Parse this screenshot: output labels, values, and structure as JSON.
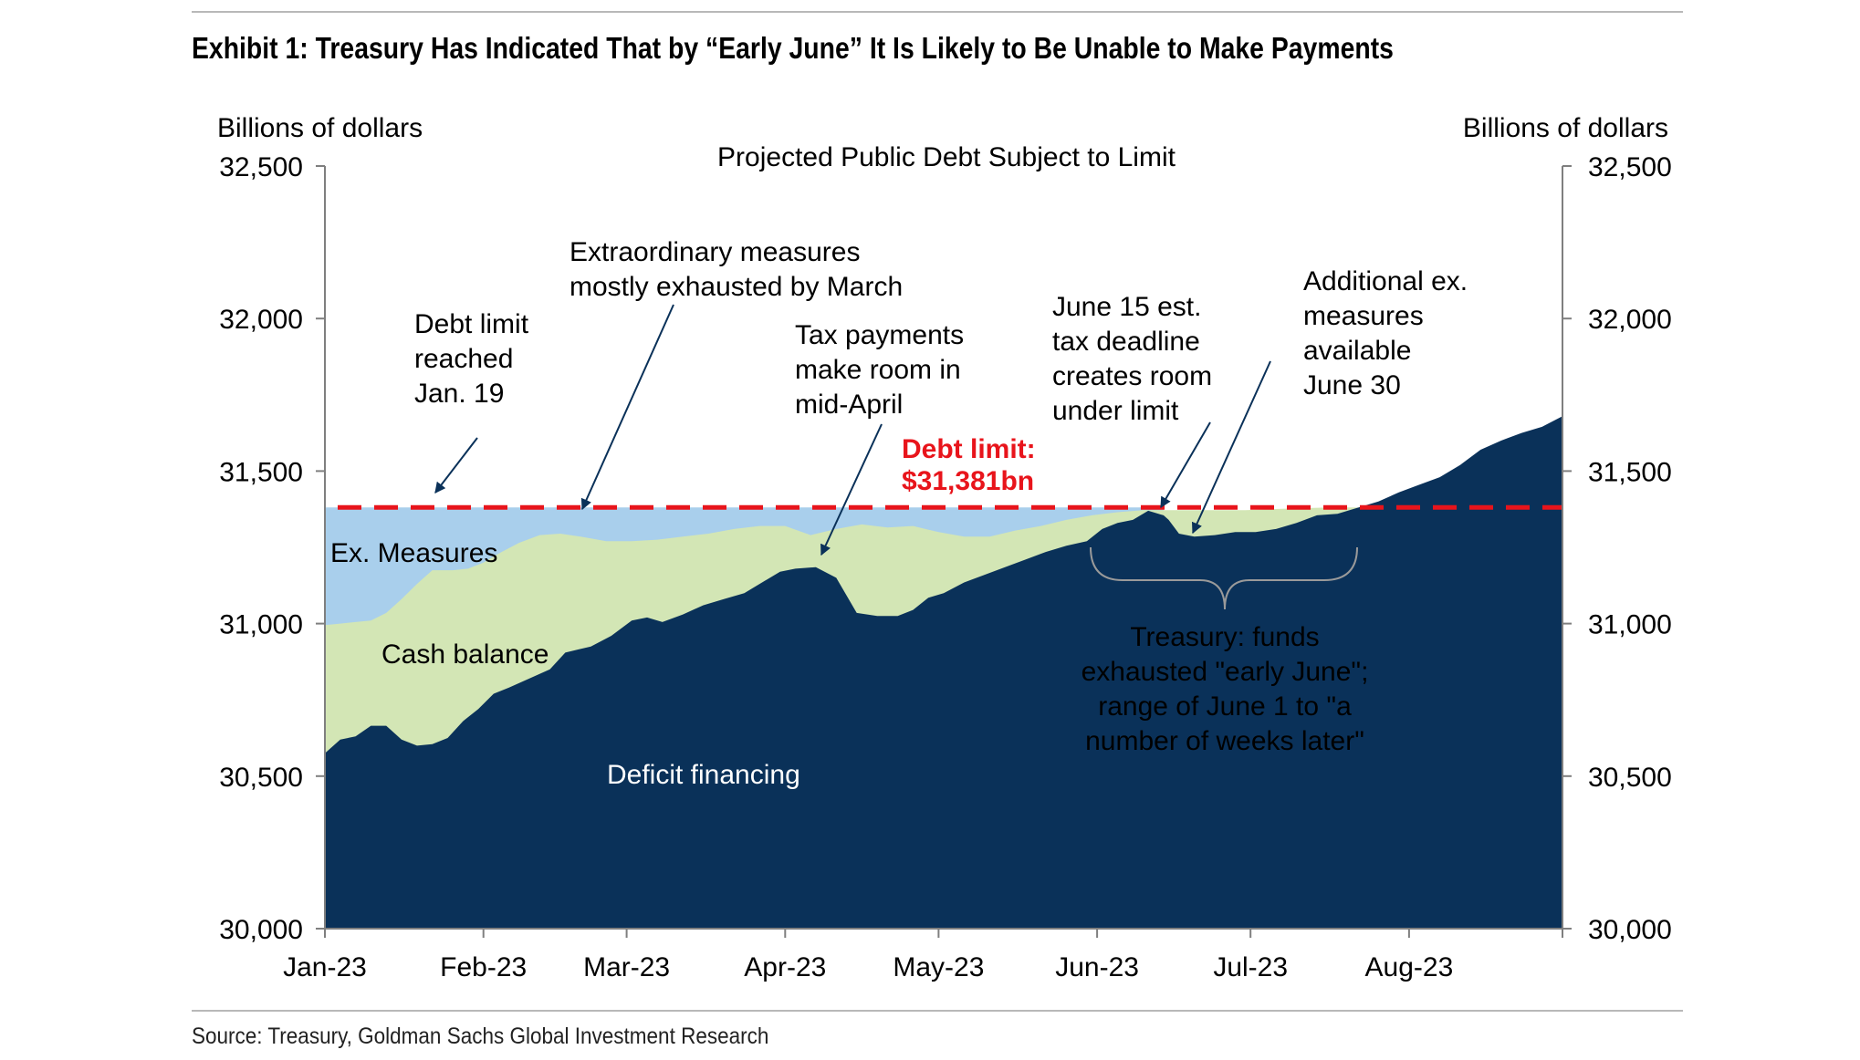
{
  "exhibit_title": "Exhibit 1: Treasury Has Indicated That by “Early June” It Is Likely to Be Unable to Make Payments",
  "source": "Source: Treasury, Goldman Sachs Global Investment Research",
  "colors": {
    "deficit_financing": "#0a3159",
    "cash_balance": "#d3e6b5",
    "ex_measures": "#a9cfec",
    "debt_limit_line": "#e8141b",
    "axis": "#7f7f7f"
  },
  "chart_data": {
    "type": "area",
    "title": "Projected Public Debt Subject to Limit",
    "ylabel_left": "Billions of dollars",
    "ylabel_right": "Billions of dollars",
    "ylim": [
      30000,
      32500
    ],
    "yticks": [
      30000,
      30500,
      31000,
      31500,
      32000,
      32500
    ],
    "ytick_labels": [
      "30,000",
      "30,500",
      "31,000",
      "31,500",
      "32,000",
      "32,500"
    ],
    "xlim_days": [
      0,
      242
    ],
    "x_ticks": [
      {
        "label": "Jan-23",
        "day": 0
      },
      {
        "label": "Feb-23",
        "day": 31
      },
      {
        "label": "Mar-23",
        "day": 59
      },
      {
        "label": "Apr-23",
        "day": 90
      },
      {
        "label": "May-23",
        "day": 120
      },
      {
        "label": "Jun-23",
        "day": 151
      },
      {
        "label": "Jul-23",
        "day": 181
      },
      {
        "label": "Aug-23",
        "day": 212
      }
    ],
    "grid": false,
    "debt_limit": {
      "value": 31381,
      "label_line1": "Debt limit:",
      "label_line2": "$31,381bn"
    },
    "series": [
      {
        "name": "Deficit financing",
        "points": [
          [
            0,
            30575
          ],
          [
            3,
            30620
          ],
          [
            6,
            30630
          ],
          [
            9,
            30665
          ],
          [
            12,
            30665
          ],
          [
            15,
            30620
          ],
          [
            18,
            30600
          ],
          [
            21,
            30605
          ],
          [
            24,
            30625
          ],
          [
            27,
            30680
          ],
          [
            30,
            30720
          ],
          [
            33,
            30770
          ],
          [
            36,
            30790
          ],
          [
            40,
            30820
          ],
          [
            44,
            30850
          ],
          [
            47,
            30905
          ],
          [
            52,
            30925
          ],
          [
            56,
            30960
          ],
          [
            60,
            31010
          ],
          [
            63,
            31020
          ],
          [
            66,
            31005
          ],
          [
            70,
            31030
          ],
          [
            74,
            31060
          ],
          [
            78,
            31080
          ],
          [
            82,
            31100
          ],
          [
            86,
            31140
          ],
          [
            89,
            31170
          ],
          [
            92,
            31180
          ],
          [
            96,
            31185
          ],
          [
            100,
            31150
          ],
          [
            104,
            31035
          ],
          [
            108,
            31025
          ],
          [
            112,
            31025
          ],
          [
            115,
            31045
          ],
          [
            118,
            31085
          ],
          [
            121,
            31100
          ],
          [
            125,
            31135
          ],
          [
            129,
            31160
          ],
          [
            133,
            31185
          ],
          [
            137,
            31210
          ],
          [
            141,
            31235
          ],
          [
            145,
            31255
          ],
          [
            149,
            31270
          ],
          [
            152,
            31310
          ],
          [
            155,
            31330
          ],
          [
            158,
            31340
          ],
          [
            161,
            31370
          ],
          [
            164,
            31355
          ],
          [
            165,
            31340
          ],
          [
            167,
            31295
          ],
          [
            170,
            31285
          ],
          [
            174,
            31290
          ],
          [
            178,
            31300
          ],
          [
            182,
            31300
          ],
          [
            186,
            31310
          ],
          [
            190,
            31330
          ],
          [
            194,
            31355
          ],
          [
            198,
            31360
          ],
          [
            202,
            31380
          ],
          [
            206,
            31400
          ],
          [
            210,
            31430
          ],
          [
            214,
            31455
          ],
          [
            218,
            31480
          ],
          [
            222,
            31520
          ],
          [
            226,
            31570
          ],
          [
            230,
            31600
          ],
          [
            234,
            31625
          ],
          [
            238,
            31645
          ],
          [
            242,
            31680
          ]
        ]
      },
      {
        "name": "Cash balance",
        "points": [
          [
            0,
            30995
          ],
          [
            3,
            31000
          ],
          [
            6,
            31005
          ],
          [
            9,
            31010
          ],
          [
            12,
            31035
          ],
          [
            15,
            31080
          ],
          [
            18,
            31130
          ],
          [
            21,
            31175
          ],
          [
            25,
            31175
          ],
          [
            28,
            31180
          ],
          [
            31,
            31200
          ],
          [
            34,
            31230
          ],
          [
            38,
            31265
          ],
          [
            42,
            31290
          ],
          [
            46,
            31295
          ],
          [
            50,
            31285
          ],
          [
            55,
            31270
          ],
          [
            60,
            31270
          ],
          [
            65,
            31275
          ],
          [
            70,
            31285
          ],
          [
            75,
            31295
          ],
          [
            80,
            31310
          ],
          [
            85,
            31320
          ],
          [
            90,
            31320
          ],
          [
            95,
            31290
          ],
          [
            100,
            31310
          ],
          [
            105,
            31325
          ],
          [
            110,
            31315
          ],
          [
            115,
            31320
          ],
          [
            120,
            31300
          ],
          [
            125,
            31285
          ],
          [
            130,
            31285
          ],
          [
            135,
            31305
          ],
          [
            140,
            31320
          ],
          [
            145,
            31340
          ],
          [
            150,
            31355
          ],
          [
            155,
            31365
          ],
          [
            160,
            31372
          ],
          [
            165,
            31372
          ],
          [
            170,
            31372
          ],
          [
            175,
            31372
          ],
          [
            180,
            31372
          ],
          [
            185,
            31375
          ],
          [
            190,
            31378
          ],
          [
            195,
            31380
          ],
          [
            200,
            31381
          ],
          [
            202,
            31381
          ]
        ]
      },
      {
        "name": "Ex. Measures",
        "value": 31381,
        "range_days": [
          0,
          164
        ]
      }
    ],
    "area_labels": [
      "Ex. Measures",
      "Cash balance",
      "Deficit financing"
    ],
    "annotations": [
      {
        "lines": [
          "Debt limit",
          "reached",
          "Jan. 19"
        ]
      },
      {
        "lines": [
          "Extraordinary measures",
          "mostly exhausted by March"
        ]
      },
      {
        "lines": [
          "Tax payments",
          "make room in",
          "mid-April"
        ]
      },
      {
        "lines": [
          "June 15 est.",
          "tax deadline",
          "creates room",
          "under limit"
        ]
      },
      {
        "lines": [
          "Additional ex.",
          "measures",
          "available",
          "June 30"
        ]
      },
      {
        "lines": [
          "Treasury: funds",
          "exhausted \"early June\";",
          "range of June 1 to \"a",
          "number of weeks later\""
        ]
      }
    ]
  }
}
